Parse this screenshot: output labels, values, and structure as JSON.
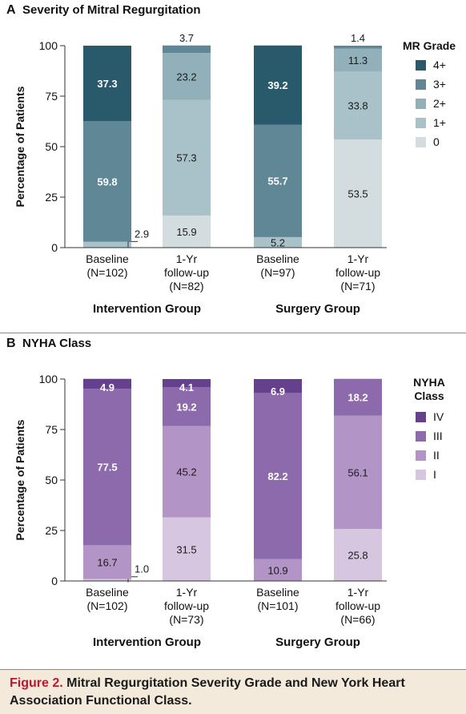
{
  "chart_data": [
    {
      "type": "bar",
      "stacked": true,
      "panel_letter": "A",
      "title": "Severity of Mitral Regurgitation",
      "ylabel": "Percentage of Patients",
      "ylim": [
        0,
        100
      ],
      "yticks": [
        "0",
        "25",
        "50",
        "75",
        "100"
      ],
      "legend_title": [
        "MR Grade"
      ],
      "legend_placement": "right",
      "categories": [
        {
          "group": "Intervention Group",
          "lines": [
            "Baseline",
            "(N=102)"
          ]
        },
        {
          "group": "Intervention Group",
          "lines": [
            "1-Yr",
            "follow-up",
            "(N=82)"
          ]
        },
        {
          "group": "Surgery Group",
          "lines": [
            "Baseline",
            "(N=97)"
          ]
        },
        {
          "group": "Surgery Group",
          "lines": [
            "1-Yr",
            "follow-up",
            "(N=71)"
          ]
        }
      ],
      "groups": [
        "Intervention Group",
        "Surgery Group"
      ],
      "series": [
        {
          "name": "0",
          "color": "#d3dde0",
          "values": [
            0,
            15.9,
            0,
            53.5
          ],
          "labels": [
            "",
            "15.9",
            "",
            "53.5"
          ]
        },
        {
          "name": "1+",
          "color": "#a9c1c9",
          "values": [
            2.9,
            57.3,
            5.2,
            33.8
          ],
          "labels": [
            "2.9",
            "57.3",
            "5.2",
            "33.8"
          ]
        },
        {
          "name": "2+",
          "color": "#92b0ba",
          "values": [
            0,
            23.2,
            0,
            11.3
          ],
          "labels": [
            "",
            "23.2",
            "",
            "11.3"
          ]
        },
        {
          "name": "3+",
          "color": "#5f8796",
          "values": [
            59.8,
            3.7,
            55.7,
            1.4
          ],
          "labels": [
            "59.8",
            "3.7",
            "55.7",
            "1.4"
          ]
        },
        {
          "name": "4+",
          "color": "#285a6b",
          "values": [
            37.3,
            0,
            39.2,
            0
          ],
          "labels": [
            "37.3",
            "",
            "39.2",
            ""
          ]
        }
      ]
    },
    {
      "type": "bar",
      "stacked": true,
      "panel_letter": "B",
      "title": "NYHA Class",
      "ylabel": "Percentage of Patients",
      "ylim": [
        0,
        100
      ],
      "yticks": [
        "0",
        "25",
        "50",
        "75",
        "100"
      ],
      "legend_title": [
        "NYHA",
        "Class"
      ],
      "legend_placement": "right",
      "categories": [
        {
          "group": "Intervention Group",
          "lines": [
            "Baseline",
            "(N=102)"
          ]
        },
        {
          "group": "Intervention Group",
          "lines": [
            "1-Yr",
            "follow-up",
            "(N=73)"
          ]
        },
        {
          "group": "Surgery Group",
          "lines": [
            "Baseline",
            "(N=101)"
          ]
        },
        {
          "group": "Surgery Group",
          "lines": [
            "1-Yr",
            "follow-up",
            "(N=66)"
          ]
        }
      ],
      "groups": [
        "Intervention Group",
        "Surgery Group"
      ],
      "series": [
        {
          "name": "I",
          "color": "#d7c6e0",
          "values": [
            1.0,
            31.5,
            0,
            25.8
          ],
          "labels": [
            "1.0",
            "31.5",
            "",
            "25.8"
          ]
        },
        {
          "name": "II",
          "color": "#b394c7",
          "values": [
            16.7,
            45.2,
            10.9,
            56.1
          ],
          "labels": [
            "16.7",
            "45.2",
            "10.9",
            "56.1"
          ]
        },
        {
          "name": "III",
          "color": "#8c6aab",
          "values": [
            77.5,
            19.2,
            82.2,
            18.2
          ],
          "labels": [
            "77.5",
            "19.2",
            "82.2",
            "18.2"
          ]
        },
        {
          "name": "IV",
          "color": "#64408d",
          "values": [
            4.9,
            4.1,
            6.9,
            0
          ],
          "labels": [
            "4.9",
            "4.1",
            "6.9",
            ""
          ]
        }
      ]
    }
  ],
  "caption": {
    "label": "Figure 2.",
    "text": " Mitral Regurgitation Severity Grade and New York Heart Association Functional Class."
  }
}
